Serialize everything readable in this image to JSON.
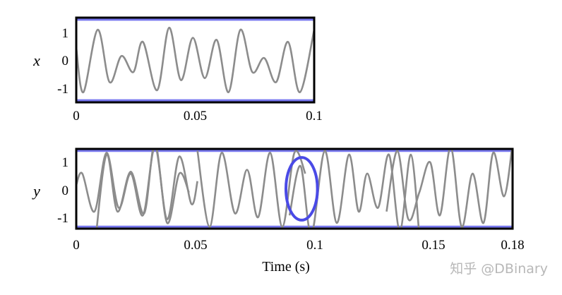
{
  "chart_data": [
    {
      "type": "line",
      "ylabel": "x",
      "xlabel": "",
      "xlim": [
        0,
        0.1
      ],
      "ylim": [
        -1.05,
        1.05
      ],
      "xticks": [
        "0",
        "0.05",
        "0.1"
      ],
      "yticks": [
        "1",
        "0",
        "-1"
      ],
      "reference_lines": [
        1,
        -1
      ],
      "series": [
        {
          "x": [
            0,
            0.003,
            0.009,
            0.014,
            0.019,
            0.024,
            0.028,
            0.034,
            0.039,
            0.044,
            0.049,
            0.054,
            0.059,
            0.064,
            0.069,
            0.074,
            0.079,
            0.084,
            0.089,
            0.094,
            0.1
          ],
          "y": [
            0.3,
            -0.8,
            0.75,
            -0.55,
            0.1,
            -0.3,
            0.45,
            -0.75,
            0.8,
            -0.5,
            0.55,
            -0.45,
            0.5,
            -0.8,
            0.75,
            -0.3,
            0.05,
            -0.55,
            0.45,
            -0.8,
            0.75
          ]
        }
      ]
    },
    {
      "type": "line",
      "ylabel": "y",
      "xlabel": "Time (s)",
      "xlim": [
        0,
        0.18
      ],
      "ylim": [
        -1.05,
        1.05
      ],
      "xticks": [
        "0",
        "0.05",
        "0.1",
        "0.15",
        "0.18"
      ],
      "yticks": [
        "1",
        "0",
        "-1"
      ],
      "reference_lines": [
        1,
        -1
      ],
      "series": [
        {
          "x": [
            0,
            0.0025,
            0.0075,
            0.0125,
            0.0175,
            0.0225,
            0.0275,
            0.0325,
            0.0375,
            0.0425,
            0.0475,
            0.05
          ],
          "y": [
            0.1,
            0.4,
            -0.6,
            0.95,
            -0.5,
            0.4,
            -0.7,
            1.1,
            -0.8,
            0.85,
            -0.4,
            0.2
          ]
        },
        {
          "x": [
            0.008,
            0.0125,
            0.017,
            0.0225,
            0.028,
            0.0325,
            0.0375,
            0.0425,
            0.0465
          ],
          "y": [
            -1.3,
            0.9,
            -0.6,
            0.45,
            -0.65,
            1.2,
            -0.9,
            0.4,
            -0.1
          ]
        },
        {
          "x": [
            0.05,
            0.055,
            0.06,
            0.0655,
            0.0705,
            0.075,
            0.08,
            0.085,
            0.09,
            0.0945
          ],
          "y": [
            1.0,
            -1.0,
            0.95,
            -0.65,
            0.5,
            -0.75,
            0.95,
            -1.0,
            0.95,
            0.4
          ]
        },
        {
          "x": [
            0.088,
            0.0925,
            0.097,
            0.1025,
            0.1075,
            0.1125,
            0.1165,
            0.12,
            0.1245,
            0.129,
            0.1335,
            0.138,
            0.1415
          ],
          "y": [
            -0.7,
            0.6,
            -1.2,
            1.0,
            -0.9,
            0.9,
            -0.6,
            0.4,
            -0.5,
            0.9,
            -1.1,
            0.9,
            -1.2
          ]
        },
        {
          "x": [
            0.128,
            0.1325,
            0.137,
            0.1415,
            0.146,
            0.15,
            0.1545,
            0.159,
            0.1635,
            0.168,
            0.172,
            0.1765,
            0.18
          ],
          "y": [
            -0.6,
            1.0,
            -0.8,
            -0.1,
            0.7,
            -0.7,
            1.1,
            -1.0,
            0.4,
            -0.9,
            0.95,
            -0.2,
            1.2
          ]
        }
      ],
      "annotations": [
        {
          "type": "ellipse",
          "x": 0.093,
          "y": 0.0,
          "rx": 0.0065,
          "ry": 1.1
        }
      ]
    }
  ],
  "watermark": "知乎 @DBinary",
  "colors": {
    "signal": "#8c8c8c",
    "reference": "#7777ee",
    "annotation": "#4a4ae6",
    "frame": "#000000"
  }
}
